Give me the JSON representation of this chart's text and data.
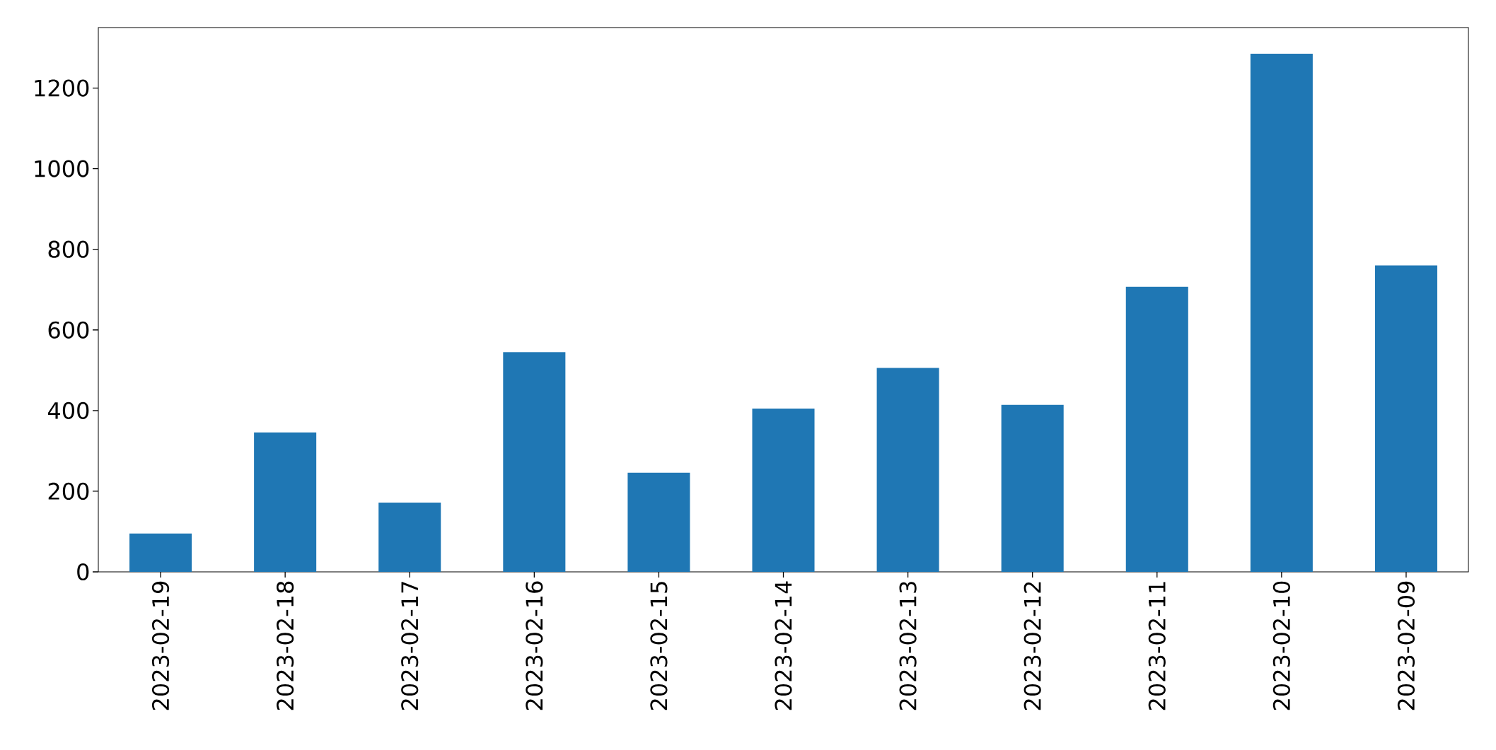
{
  "chart_data": {
    "type": "bar",
    "categories": [
      "2023-02-19",
      "2023-02-18",
      "2023-02-17",
      "2023-02-16",
      "2023-02-15",
      "2023-02-14",
      "2023-02-13",
      "2023-02-12",
      "2023-02-11",
      "2023-02-10",
      "2023-02-09"
    ],
    "values": [
      95,
      346,
      172,
      545,
      246,
      405,
      506,
      414,
      707,
      1285,
      760
    ],
    "color": "#1f77b4",
    "ylim": [
      0,
      1350
    ],
    "yticks": [
      0,
      200,
      400,
      600,
      800,
      1000,
      1200
    ],
    "grid": false
  }
}
